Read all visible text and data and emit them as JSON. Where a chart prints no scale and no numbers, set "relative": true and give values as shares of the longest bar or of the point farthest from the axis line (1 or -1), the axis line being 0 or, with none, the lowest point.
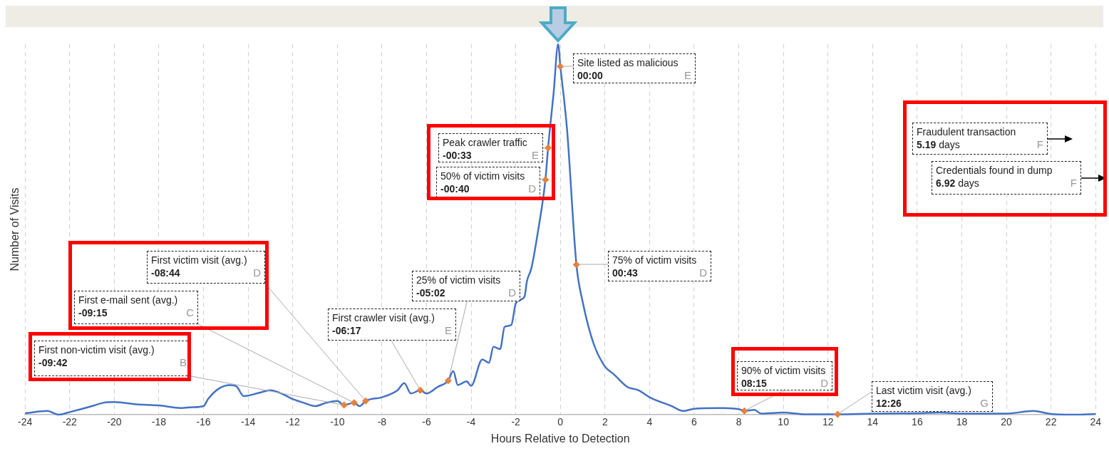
{
  "chart_data": {
    "type": "line",
    "xlabel": "Hours Relative to Detection",
    "ylabel": "Number of Visits",
    "relative": true,
    "grid": "x",
    "legend": false,
    "marker": "none",
    "line_style": "solid",
    "xlim": [
      -24,
      24
    ],
    "xticks": [
      -24,
      -22,
      -20,
      -18,
      -16,
      -14,
      -12,
      -10,
      -8,
      -6,
      -4,
      -2,
      0,
      2,
      4,
      6,
      8,
      10,
      12,
      14,
      16,
      18,
      20,
      22,
      24
    ],
    "series": [
      {
        "color": "#4472c4",
        "x": [
          -24,
          -23,
          -22.5,
          -22,
          -21,
          -20.5,
          -20,
          -19,
          -18,
          -17,
          -16.5,
          -16,
          -15.8,
          -15.3,
          -14.8,
          -14.5,
          -14.2,
          -13.5,
          -13,
          -12.5,
          -12,
          -11.5,
          -11,
          -10.5,
          -10,
          -9.7,
          -9.25,
          -9,
          -8.73,
          -8,
          -7.3,
          -7,
          -6.7,
          -6.28,
          -6,
          -5.5,
          -5.03,
          -4.8,
          -4.6,
          -4.2,
          -4,
          -3.5,
          -3.2,
          -3,
          -2.7,
          -2.5,
          -2.2,
          -2,
          -1.8,
          -1.6,
          -1.5,
          -1.3,
          -1,
          -0.67,
          -0.55,
          -0.3,
          -0.1,
          0,
          0.3,
          0.72,
          1,
          1.5,
          2,
          2.4,
          3,
          3.5,
          4,
          5,
          5.5,
          6,
          7,
          8,
          8.25,
          8.7,
          9,
          10,
          11,
          12.43,
          14,
          16,
          17,
          18,
          20,
          21.2,
          22,
          23,
          24
        ],
        "values": [
          0.004,
          0.01,
          0,
          0.007,
          0.023,
          0.032,
          0.034,
          0.028,
          0.025,
          0.018,
          0.02,
          0.023,
          0.042,
          0.071,
          0.08,
          0.075,
          0.05,
          0.059,
          0.066,
          0.057,
          0.042,
          0.032,
          0.023,
          0.032,
          0.037,
          0.026,
          0.032,
          0.023,
          0.037,
          0.047,
          0.066,
          0.085,
          0.057,
          0.066,
          0.057,
          0.075,
          0.092,
          0.118,
          0.08,
          0.09,
          0.078,
          0.149,
          0.14,
          0.183,
          0.177,
          0.237,
          0.242,
          0.3,
          0.31,
          0.32,
          0.36,
          0.395,
          0.496,
          0.634,
          0.72,
          0.87,
          1,
          0.94,
          0.77,
          0.405,
          0.305,
          0.19,
          0.13,
          0.109,
          0.075,
          0.066,
          0.047,
          0.023,
          0.01,
          0.016,
          0.018,
          0.015,
          0.01,
          0.013,
          0.003,
          0.006,
          0.001,
          0.001,
          0.003,
          0.004,
          0.006,
          0.003,
          0.003,
          0.01,
          0.002,
          0,
          0.002
        ]
      },
      {
        "type": "scatter",
        "marker": "diamond",
        "color": "#ed7d31",
        "x": [
          -9.7,
          -9.25,
          -8.73,
          -6.28,
          -5.03,
          -0.67,
          -0.55,
          0,
          0.72,
          8.25,
          12.43
        ],
        "values": [
          0.026,
          0.032,
          0.037,
          0.066,
          0.092,
          0.634,
          0.72,
          0.94,
          0.405,
          0.01,
          0.001
        ]
      }
    ],
    "annotations": [
      "First non-victim visit (avg.) -09:42 B",
      "First e-mail sent (avg.) -09:15 C",
      "First victim visit (avg.) -08:44 D",
      "First crawler visit (avg.) -06:17 E",
      "25% of victim visits -05:02 D",
      "50% of victim visits -00:40 D",
      "Peak crawler traffic -00:33 E",
      "Site listed as malicious 00:00 E",
      "75% of victim visits 00:43 D",
      "90% of victim visits 08:15 D",
      "Last victim visit (avg.) 12:26 G",
      "Fraudulent transaction 5.19 days F",
      "Credentials found in dump 6.92 days F"
    ]
  }
}
